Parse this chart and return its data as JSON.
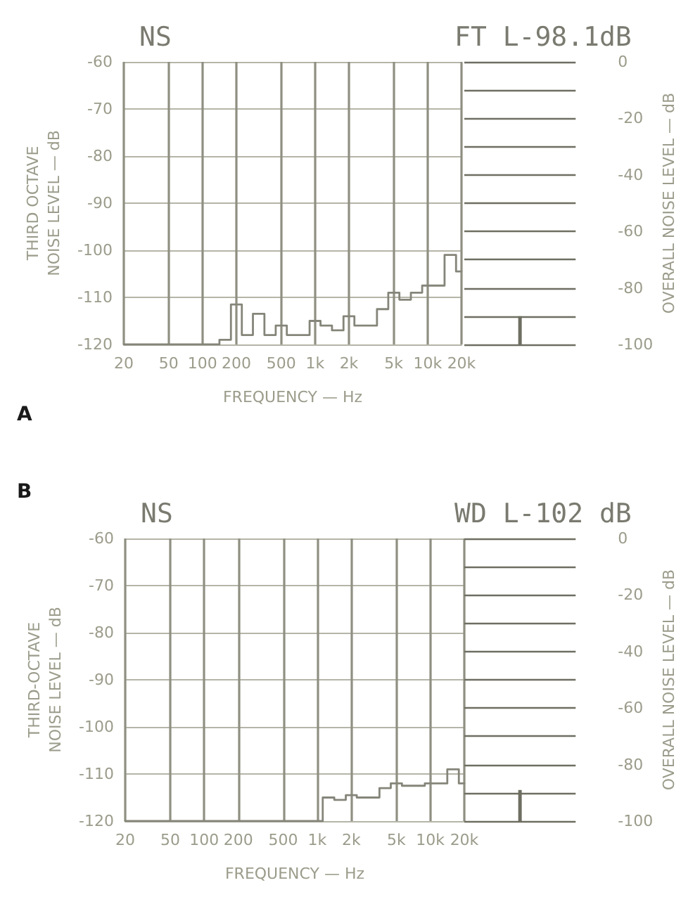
{
  "chart_data": [
    {
      "type": "step",
      "title": "NS",
      "xlabel": "FREQUENCY — Hz",
      "ylabel": "THIRD OCTAVE\nNOISE LEVEL — dB",
      "annotations": [
        "A"
      ],
      "x": [
        20,
        25,
        31.5,
        40,
        50,
        63,
        80,
        100,
        125,
        160,
        200,
        250,
        315,
        400,
        500,
        630,
        800,
        1000,
        1250,
        1600,
        2000,
        2500,
        3150,
        4000,
        5000,
        6300,
        8000,
        10000,
        12500,
        16000,
        20000
      ],
      "series": [
        {
          "color": "#85857a",
          "values": [
            -120,
            -120,
            -120,
            -120,
            -120,
            -120,
            -120,
            -120,
            -120,
            -119,
            -111.5,
            -118,
            -113.5,
            -118,
            -116,
            -118,
            -118,
            -115,
            -116,
            -117,
            -114,
            -116,
            -116,
            -112.5,
            -109,
            -110.5,
            -109,
            -107.5,
            -107.5,
            -101,
            -104.5
          ]
        }
      ],
      "log": "x",
      "xlim": [
        20,
        20000
      ],
      "xticks": [
        20,
        50,
        100,
        200,
        500,
        {
          "value": 1000,
          "label": "1k"
        },
        {
          "value": 2000,
          "label": "2k"
        },
        {
          "value": 5000,
          "label": "5k"
        },
        {
          "value": 10000,
          "label": "10k"
        },
        {
          "value": 20000,
          "label": "20k"
        }
      ],
      "ylim": [
        -120,
        -60
      ],
      "yticks": [
        -120,
        -110,
        -100,
        -90,
        -80,
        -70,
        -60
      ],
      "grid": true,
      "line_style": "solid",
      "marker": "none"
    },
    {
      "type": "bar",
      "title": "FT L-98.1dB",
      "ylabel": "OVERALL NOISE LEVEL — dB",
      "categories": [
        null
      ],
      "base": [
        -100
      ],
      "values": [
        10
      ],
      "colors": [
        "#6e6e62"
      ],
      "ylim": [
        -100,
        0
      ],
      "yticks": [
        -100,
        {
          "value": -90,
          "label": null
        },
        -80,
        {
          "value": -70,
          "label": null
        },
        -60,
        {
          "value": -50,
          "label": null
        },
        -40,
        {
          "value": -30,
          "label": null
        },
        -20,
        {
          "value": -10,
          "label": null
        },
        0
      ],
      "grid": "y",
      "tick_labels": "y"
    },
    {
      "type": "step",
      "title": "NS",
      "xlabel": "FREQUENCY — Hz",
      "ylabel": "THIRD-OCTAVE\nNOISE LEVEL — dB",
      "annotations": [
        "B"
      ],
      "x": [
        20,
        25,
        31.5,
        40,
        50,
        63,
        80,
        100,
        125,
        160,
        200,
        250,
        315,
        400,
        500,
        630,
        800,
        1000,
        1250,
        1600,
        2000,
        2500,
        3150,
        4000,
        5000,
        6300,
        8000,
        10000,
        12500,
        16000,
        20000
      ],
      "series": [
        {
          "color": "#85857a",
          "values": [
            -120,
            -120,
            -120,
            -120,
            -120,
            -120,
            -120,
            -120,
            -120,
            -120,
            -120,
            -120,
            -120,
            -120,
            -120,
            -120,
            -120,
            -120,
            -115,
            -115.5,
            -114.5,
            -115,
            -115,
            -113,
            -112,
            -112.5,
            -112.5,
            -112,
            -112,
            -109,
            -112
          ]
        }
      ],
      "log": "x",
      "xlim": [
        20,
        20000
      ],
      "xticks": [
        20,
        50,
        100,
        200,
        500,
        {
          "value": 1000,
          "label": "1k"
        },
        {
          "value": 2000,
          "label": "2k"
        },
        {
          "value": 5000,
          "label": "5k"
        },
        {
          "value": 10000,
          "label": "10k"
        },
        {
          "value": 20000,
          "label": "20k"
        }
      ],
      "ylim": [
        -120,
        -60
      ],
      "yticks": [
        -120,
        -110,
        -100,
        -90,
        -80,
        -70,
        -60
      ],
      "grid": true,
      "line_style": "solid",
      "marker": "none"
    },
    {
      "type": "bar",
      "title": "WD L-102 dB",
      "ylabel": "OVERALL NOISE LEVEL — dB",
      "categories": [
        null
      ],
      "base": [
        -100
      ],
      "values": [
        11
      ],
      "colors": [
        "#6e6e62"
      ],
      "ylim": [
        -100,
        0
      ],
      "yticks": [
        -100,
        {
          "value": -90,
          "label": null
        },
        -80,
        {
          "value": -70,
          "label": null
        },
        -60,
        {
          "value": -50,
          "label": null
        },
        -40,
        {
          "value": -30,
          "label": null
        },
        -20,
        {
          "value": -10,
          "label": null
        },
        0
      ],
      "grid": "y",
      "tick_labels": "y"
    }
  ]
}
